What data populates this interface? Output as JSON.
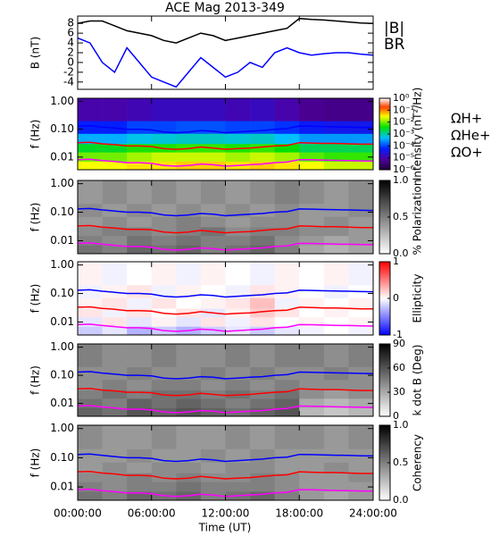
{
  "title": "ACE Mag 2013-349",
  "xlim": [
    0,
    24
  ],
  "xticks": [
    {
      "value": 0,
      "label": "00:00:00"
    },
    {
      "value": 6,
      "label": "06:00:00"
    },
    {
      "value": 12,
      "label": "12:00:00"
    },
    {
      "value": 18,
      "label": "18:00:00"
    },
    {
      "value": 24,
      "label": "24:00:00"
    }
  ],
  "xlabel": "Time (UT)",
  "chart_data": [
    {
      "type": "line",
      "ylabel": "B (nT)",
      "ylim": [
        -5.5,
        9.5
      ],
      "yticks": [
        -4,
        -2,
        0,
        2,
        4,
        6,
        8
      ],
      "x": [
        0,
        1,
        2,
        3,
        4,
        5,
        6,
        7,
        8,
        9,
        10,
        11,
        12,
        13,
        14,
        15,
        16,
        17,
        18,
        19,
        20,
        21,
        22,
        23,
        24
      ],
      "series": [
        {
          "name": "|B|",
          "color": "#000000",
          "values": [
            8,
            8.5,
            8.5,
            7.5,
            6.5,
            6,
            5.5,
            4.5,
            4,
            5,
            6,
            5.5,
            4.5,
            5,
            5.5,
            6,
            6.5,
            7,
            9,
            8.8,
            8.7,
            8.5,
            8.3,
            8.1,
            8
          ]
        },
        {
          "name": "BR",
          "color": "#0000ff",
          "values": [
            5,
            4,
            0,
            -2,
            3,
            0,
            -3,
            -4,
            -5,
            -2,
            1,
            -1,
            -3,
            -2,
            0,
            -1,
            2,
            3,
            2,
            1.5,
            1.8,
            2,
            2,
            1.7,
            1.5
          ]
        }
      ]
    },
    {
      "type": "spectrogram",
      "ylabel": "f (Hz)",
      "log_y": true,
      "ylim": [
        0.0035,
        1.3
      ],
      "yticks": [
        0.01,
        {
          "value": 0.1,
          "label": "0.10"
        },
        {
          "value": 1,
          "label": "1.00"
        }
      ],
      "x_edges": [
        0,
        2,
        4,
        6,
        8,
        10,
        12,
        14,
        16,
        18,
        20,
        22,
        24
      ],
      "f_edges": [
        0.0035,
        0.007,
        0.015,
        0.03,
        0.07,
        0.2,
        1.3
      ],
      "z": [
        [
          0.03,
          0.03,
          0.04,
          0.04,
          0.05,
          0.05,
          0.04,
          0.05,
          0.04,
          0.03,
          0.02,
          0.02
        ],
        [
          0.01,
          0.01,
          0.015,
          0.02,
          0.02,
          0.02,
          0.015,
          0.02,
          0.015,
          0.008,
          0.006,
          0.006
        ],
        [
          0.003,
          0.003,
          0.005,
          0.005,
          0.006,
          0.006,
          0.005,
          0.006,
          0.004,
          0.002,
          0.002,
          0.002
        ],
        [
          0.0004,
          0.0004,
          0.0006,
          0.0007,
          0.0008,
          0.0008,
          0.0007,
          0.0008,
          0.0005,
          0.0003,
          0.0003,
          0.0003
        ],
        [
          6e-05,
          6e-05,
          0.0001,
          0.0001,
          0.00012,
          0.00012,
          0.0001,
          0.0001,
          8e-05,
          5e-05,
          4e-05,
          4e-05
        ],
        [
          1e-05,
          1e-05,
          1.2e-05,
          1.5e-05,
          1.5e-05,
          1.5e-05,
          1.2e-05,
          1.5e-05,
          1e-05,
          6e-06,
          5e-06,
          5e-06
        ]
      ],
      "colormap": "rainbow",
      "zlog": true,
      "zlim": [
        1e-06,
        1
      ],
      "zticks": [
        {
          "value": 1,
          "label": "10⁰"
        },
        {
          "value": 0.1,
          "label": "10⁻¹"
        },
        {
          "value": 0.01,
          "label": "10⁻²"
        },
        {
          "value": 0.001,
          "label": "10⁻³"
        },
        {
          "value": 0.0001,
          "label": "10⁻⁴"
        },
        {
          "value": 1e-05,
          "label": "10⁻⁵"
        },
        {
          "value": 1e-06,
          "label": "10⁻⁶"
        }
      ],
      "zlabel": "Intensity (nT²/Hz)",
      "x": [
        0,
        1,
        2,
        3,
        4,
        5,
        6,
        7,
        8,
        9,
        10,
        11,
        12,
        13,
        14,
        15,
        16,
        17,
        18,
        19,
        20,
        21,
        22,
        23,
        24
      ],
      "series": [
        {
          "name": "ΩH+",
          "color": "#0000ff",
          "values": [
            0.13,
            0.135,
            0.12,
            0.11,
            0.1,
            0.1,
            0.095,
            0.08,
            0.075,
            0.08,
            0.09,
            0.085,
            0.075,
            0.08,
            0.085,
            0.09,
            0.1,
            0.105,
            0.13,
            0.128,
            0.125,
            0.122,
            0.12,
            0.117,
            0.115
          ]
        },
        {
          "name": "ΩHe+",
          "color": "#ff0000",
          "values": [
            0.033,
            0.034,
            0.03,
            0.028,
            0.025,
            0.025,
            0.024,
            0.02,
            0.019,
            0.02,
            0.023,
            0.021,
            0.019,
            0.02,
            0.021,
            0.023,
            0.025,
            0.026,
            0.033,
            0.032,
            0.031,
            0.031,
            0.03,
            0.029,
            0.029
          ]
        },
        {
          "name": "ΩO+",
          "color": "#ff00ff",
          "values": [
            0.0081,
            0.0084,
            0.0075,
            0.0069,
            0.0063,
            0.0063,
            0.0059,
            0.005,
            0.0047,
            0.005,
            0.0056,
            0.0053,
            0.0047,
            0.005,
            0.0053,
            0.0056,
            0.0063,
            0.0066,
            0.0081,
            0.008,
            0.0078,
            0.0076,
            0.0075,
            0.0073,
            0.0072
          ]
        }
      ]
    },
    {
      "type": "spectrogram",
      "ylabel": "f (Hz)",
      "log_y": true,
      "ylim": [
        0.0035,
        1.3
      ],
      "yticks": [
        0.01,
        {
          "value": 0.1,
          "label": "0.10"
        },
        {
          "value": 1,
          "label": "1.00"
        }
      ],
      "x_edges": [
        0,
        2,
        4,
        6,
        8,
        10,
        12,
        14,
        16,
        18,
        20,
        22,
        24
      ],
      "f_edges": [
        0.0035,
        0.007,
        0.015,
        0.03,
        0.07,
        0.2,
        1.3
      ],
      "z": [
        [
          0.55,
          0.5,
          0.6,
          0.55,
          0.6,
          0.5,
          0.55,
          0.6,
          0.5,
          0.35,
          0.3,
          0.35
        ],
        [
          0.5,
          0.45,
          0.55,
          0.5,
          0.55,
          0.5,
          0.5,
          0.55,
          0.45,
          0.4,
          0.35,
          0.4
        ],
        [
          0.45,
          0.5,
          0.5,
          0.45,
          0.5,
          0.55,
          0.45,
          0.5,
          0.5,
          0.45,
          0.45,
          0.4
        ],
        [
          0.4,
          0.45,
          0.4,
          0.45,
          0.5,
          0.45,
          0.4,
          0.45,
          0.45,
          0.4,
          0.45,
          0.4
        ],
        [
          0.45,
          0.4,
          0.45,
          0.4,
          0.45,
          0.4,
          0.45,
          0.4,
          0.45,
          0.4,
          0.4,
          0.45
        ],
        [
          0.4,
          0.45,
          0.4,
          0.45,
          0.4,
          0.45,
          0.4,
          0.45,
          0.5,
          0.45,
          0.4,
          0.45
        ]
      ],
      "colormap": "gray_r",
      "zlim": [
        0,
        1
      ],
      "zticks": [
        {
          "value": 0,
          "label": "0.0"
        },
        {
          "value": 0.5,
          "label": "0.5"
        },
        {
          "value": 1,
          "label": "1.0"
        }
      ],
      "zlabel": "% Polarization"
    },
    {
      "type": "spectrogram",
      "ylabel": "f (Hz)",
      "log_y": true,
      "ylim": [
        0.0035,
        1.3
      ],
      "yticks": [
        0.01,
        {
          "value": 0.1,
          "label": "0.10"
        },
        {
          "value": 1,
          "label": "1.00"
        }
      ],
      "x_edges": [
        0,
        2,
        4,
        6,
        8,
        10,
        12,
        14,
        16,
        18,
        20,
        22,
        24
      ],
      "f_edges": [
        0.0035,
        0.007,
        0.015,
        0.03,
        0.07,
        0.2,
        1.3
      ],
      "z": [
        [
          -0.2,
          -0.1,
          -0.3,
          -0.2,
          -0.3,
          -0.2,
          -0.1,
          -0.2,
          -0.1,
          -0.05,
          0,
          -0.05
        ],
        [
          -0.1,
          0.1,
          -0.1,
          0.05,
          -0.1,
          0.1,
          -0.05,
          0.1,
          0,
          0.05,
          0,
          0.05
        ],
        [
          0.1,
          -0.05,
          0.1,
          0,
          0.1,
          -0.1,
          0.05,
          0.2,
          0.1,
          0,
          0.05,
          0
        ],
        [
          0.05,
          0.1,
          -0.05,
          0.1,
          0,
          0.05,
          0.1,
          0.25,
          -0.05,
          0.05,
          0,
          0.05
        ],
        [
          -0.05,
          0.05,
          0.1,
          -0.05,
          0.05,
          0,
          -0.05,
          0.1,
          0.05,
          0,
          -0.05,
          0
        ],
        [
          0.05,
          -0.05,
          0,
          0.05,
          -0.05,
          0.05,
          0,
          -0.05,
          0.05,
          0,
          0.05,
          -0.05
        ]
      ],
      "colormap": "bwr",
      "zlim": [
        -1,
        1
      ],
      "zticks": [
        -1,
        0,
        1
      ],
      "zlabel": "Ellipticity"
    },
    {
      "type": "spectrogram",
      "ylabel": "f (Hz)",
      "log_y": true,
      "ylim": [
        0.0035,
        1.3
      ],
      "yticks": [
        0.01,
        {
          "value": 0.1,
          "label": "0.10"
        },
        {
          "value": 1,
          "label": "1.00"
        }
      ],
      "x_edges": [
        0,
        2,
        4,
        6,
        8,
        10,
        12,
        14,
        16,
        18,
        20,
        22,
        24
      ],
      "f_edges": [
        0.0035,
        0.007,
        0.015,
        0.03,
        0.07,
        0.2,
        1.3
      ],
      "z": [
        [
          55,
          50,
          60,
          55,
          60,
          55,
          50,
          55,
          60,
          25,
          20,
          25
        ],
        [
          50,
          45,
          55,
          50,
          55,
          50,
          45,
          50,
          55,
          30,
          25,
          30
        ],
        [
          45,
          50,
          45,
          50,
          50,
          45,
          50,
          45,
          50,
          40,
          35,
          40
        ],
        [
          40,
          45,
          40,
          45,
          45,
          40,
          45,
          40,
          45,
          40,
          40,
          40
        ],
        [
          40,
          40,
          45,
          40,
          40,
          45,
          40,
          45,
          40,
          40,
          45,
          40
        ],
        [
          45,
          40,
          40,
          45,
          40,
          40,
          45,
          40,
          45,
          45,
          40,
          45
        ]
      ],
      "colormap": "gray_r",
      "zlim": [
        0,
        90
      ],
      "zticks": [
        0,
        30,
        60,
        90
      ],
      "zlabel": "k dot B (Deg)"
    },
    {
      "type": "spectrogram",
      "ylabel": "f (Hz)",
      "log_y": true,
      "ylim": [
        0.0035,
        1.3
      ],
      "yticks": [
        0.01,
        {
          "value": 0.1,
          "label": "0.10"
        },
        {
          "value": 1,
          "label": "1.00"
        }
      ],
      "x_edges": [
        0,
        2,
        4,
        6,
        8,
        10,
        12,
        14,
        16,
        18,
        20,
        22,
        24
      ],
      "f_edges": [
        0.0035,
        0.007,
        0.015,
        0.03,
        0.07,
        0.2,
        1.3
      ],
      "z": [
        [
          0.55,
          0.5,
          0.6,
          0.55,
          0.6,
          0.5,
          0.55,
          0.6,
          0.5,
          0.4,
          0.35,
          0.4
        ],
        [
          0.5,
          0.45,
          0.5,
          0.5,
          0.55,
          0.5,
          0.5,
          0.5,
          0.45,
          0.4,
          0.4,
          0.4
        ],
        [
          0.45,
          0.45,
          0.5,
          0.45,
          0.5,
          0.45,
          0.45,
          0.5,
          0.45,
          0.4,
          0.4,
          0.45
        ],
        [
          0.4,
          0.45,
          0.4,
          0.45,
          0.45,
          0.4,
          0.45,
          0.45,
          0.4,
          0.4,
          0.45,
          0.4
        ],
        [
          0.4,
          0.4,
          0.45,
          0.4,
          0.4,
          0.45,
          0.4,
          0.45,
          0.4,
          0.4,
          0.4,
          0.4
        ],
        [
          0.45,
          0.4,
          0.4,
          0.45,
          0.4,
          0.4,
          0.45,
          0.4,
          0.45,
          0.45,
          0.4,
          0.45
        ]
      ],
      "colormap": "gray_r",
      "zlim": [
        0,
        1
      ],
      "zticks": [
        {
          "value": 0,
          "label": "0.0"
        },
        {
          "value": 0.5,
          "label": "0.5"
        },
        {
          "value": 1,
          "label": "1.0"
        }
      ],
      "zlabel": "Coherency"
    }
  ]
}
